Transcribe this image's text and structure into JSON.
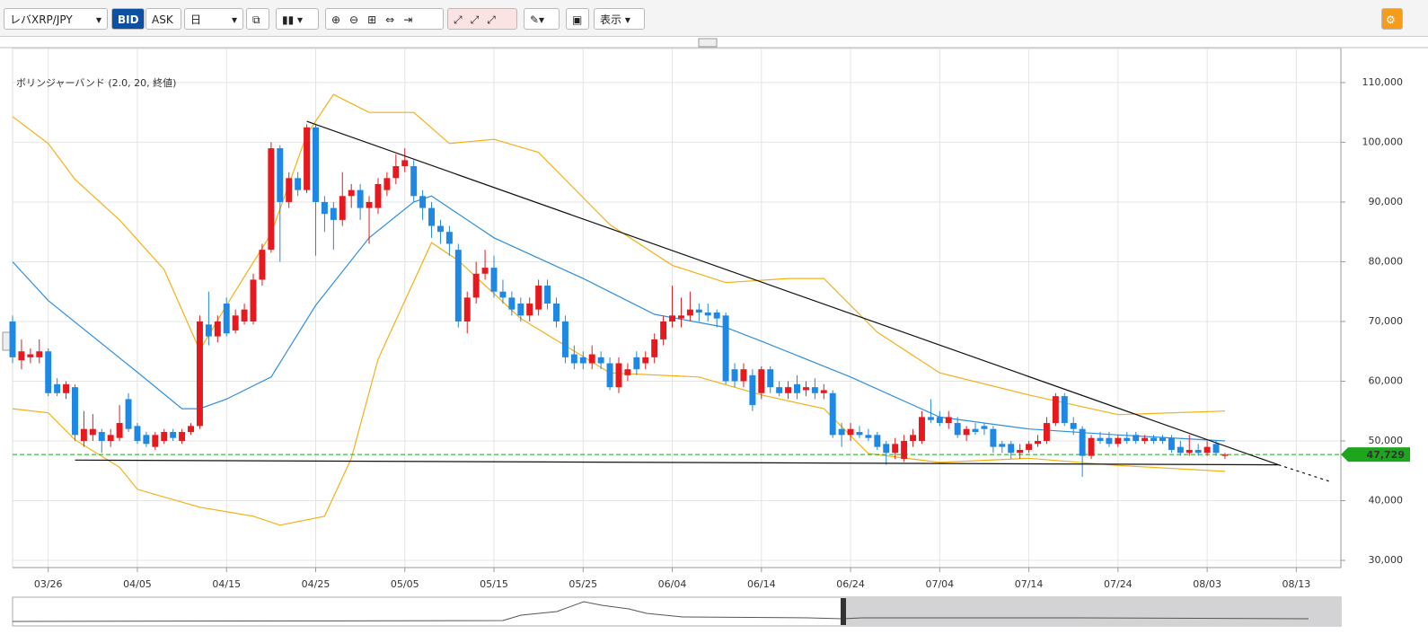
{
  "toolbar": {
    "symbol": "レバXRP/JPY",
    "bid": "BID",
    "ask": "ASK",
    "period": "日",
    "view": "表示"
  },
  "chart_data": {
    "type": "candlestick",
    "indicator_label": "ボリンジャーバンド (2.0, 20, 終値)",
    "indicator_color": "#f5b014",
    "middle_color": "#2e8fe0",
    "up_color": "#e8191e",
    "down_color": "#1e88e5",
    "xlim": [
      "03/22",
      "08/18"
    ],
    "xticks": [
      "03/26",
      "04/05",
      "04/15",
      "04/25",
      "05/05",
      "05/15",
      "05/25",
      "06/04",
      "06/14",
      "06/24",
      "07/04",
      "07/14",
      "07/24",
      "08/03",
      "08/13"
    ],
    "ylim": [
      28800,
      115700
    ],
    "yticks": [
      {
        "value": 30000,
        "label": "30,000"
      },
      {
        "value": 40000,
        "label": "40,000"
      },
      {
        "value": 50000,
        "label": "50,000"
      },
      {
        "value": 60000,
        "label": "60,000"
      },
      {
        "value": 70000,
        "label": "70,000"
      },
      {
        "value": 80000,
        "label": "80,000"
      },
      {
        "value": 90000,
        "label": "90,000"
      },
      {
        "value": 100000,
        "label": "100,000"
      },
      {
        "value": 110000,
        "label": "110,000"
      }
    ],
    "grid": true,
    "current_price": {
      "value": 47729,
      "label": "47,729",
      "color": "#1ea51e"
    },
    "categories": [
      "03/22",
      "03/23",
      "03/24",
      "03/25",
      "03/26",
      "03/27",
      "03/28",
      "03/29",
      "03/30",
      "03/31",
      "04/01",
      "04/02",
      "04/03",
      "04/04",
      "04/05",
      "04/06",
      "04/07",
      "04/08",
      "04/09",
      "04/10",
      "04/11",
      "04/12",
      "04/13",
      "04/14",
      "04/15",
      "04/16",
      "04/17",
      "04/18",
      "04/19",
      "04/20",
      "04/21",
      "04/22",
      "04/23",
      "04/24",
      "04/25",
      "04/26",
      "04/27",
      "04/28",
      "04/29",
      "04/30",
      "05/01",
      "05/02",
      "05/03",
      "05/04",
      "05/05",
      "05/06",
      "05/07",
      "05/08",
      "05/09",
      "05/10",
      "05/11",
      "05/12",
      "05/13",
      "05/14",
      "05/15",
      "05/16",
      "05/17",
      "05/18",
      "05/19",
      "05/20",
      "05/21",
      "05/22",
      "05/23",
      "05/24",
      "05/25",
      "05/26",
      "05/27",
      "05/28",
      "05/29",
      "05/30",
      "05/31",
      "06/01",
      "06/02",
      "06/03",
      "06/04",
      "06/05",
      "06/06",
      "06/07",
      "06/08",
      "06/09",
      "06/10",
      "06/11",
      "06/12",
      "06/13",
      "06/14",
      "06/15",
      "06/16",
      "06/17",
      "06/18",
      "06/19",
      "06/20",
      "06/21",
      "06/22",
      "06/23",
      "06/24",
      "06/25",
      "06/26",
      "06/27",
      "06/28",
      "06/29",
      "06/30",
      "07/01",
      "07/02",
      "07/03",
      "07/04",
      "07/05",
      "07/06",
      "07/07",
      "07/08",
      "07/09",
      "07/10",
      "07/11",
      "07/12",
      "07/13",
      "07/14",
      "07/15",
      "07/16",
      "07/17",
      "07/18",
      "07/19",
      "07/20",
      "07/21",
      "07/22",
      "07/23",
      "07/24",
      "07/25",
      "07/26",
      "07/27",
      "07/28",
      "07/29",
      "07/30",
      "07/31",
      "08/01",
      "08/02",
      "08/03",
      "08/04",
      "08/05"
    ],
    "candles": [
      [
        70000,
        71000,
        63000,
        64000
      ],
      [
        63500,
        67000,
        62000,
        65000
      ],
      [
        64000,
        65500,
        63000,
        64500
      ],
      [
        64000,
        67000,
        63000,
        65000
      ],
      [
        65000,
        65500,
        57500,
        58000
      ],
      [
        59500,
        60500,
        57500,
        58000
      ],
      [
        58000,
        60000,
        57000,
        59500
      ],
      [
        59000,
        59500,
        50000,
        51000
      ],
      [
        50000,
        55000,
        49000,
        52000
      ],
      [
        51000,
        54500,
        50000,
        52000
      ],
      [
        51500,
        52000,
        48000,
        50000
      ],
      [
        50000,
        52000,
        49000,
        51000
      ],
      [
        50500,
        56000,
        50000,
        53000
      ],
      [
        57000,
        58000,
        51500,
        52000
      ],
      [
        52500,
        53000,
        49500,
        50000
      ],
      [
        51000,
        51500,
        49000,
        49500
      ],
      [
        49000,
        51500,
        48500,
        51000
      ],
      [
        50000,
        52000,
        49500,
        51500
      ],
      [
        51500,
        52000,
        50000,
        50500
      ],
      [
        50000,
        52000,
        49500,
        51500
      ],
      [
        51500,
        53000,
        51000,
        52500
      ],
      [
        52500,
        71000,
        52000,
        70000
      ],
      [
        69500,
        75000,
        66000,
        67500
      ],
      [
        67500,
        71000,
        66500,
        70000
      ],
      [
        73000,
        74000,
        67500,
        68000
      ],
      [
        68500,
        72000,
        68000,
        71000
      ],
      [
        70000,
        73000,
        69500,
        72000
      ],
      [
        70000,
        78000,
        69500,
        77000
      ],
      [
        77000,
        83000,
        76000,
        82000
      ],
      [
        82000,
        100000,
        81500,
        99000
      ],
      [
        99000,
        99500,
        80000,
        90000
      ],
      [
        90000,
        95000,
        89000,
        94000
      ],
      [
        94000,
        95000,
        91000,
        92000
      ],
      [
        92000,
        103000,
        91500,
        102500
      ],
      [
        102500,
        103000,
        81000,
        90000
      ],
      [
        90000,
        91000,
        85000,
        88000
      ],
      [
        89000,
        90000,
        82000,
        87000
      ],
      [
        87000,
        95000,
        86000,
        91000
      ],
      [
        91000,
        93000,
        89000,
        92000
      ],
      [
        92000,
        93000,
        87000,
        89000
      ],
      [
        89000,
        91000,
        83000,
        90000
      ],
      [
        89000,
        94000,
        88000,
        93000
      ],
      [
        92000,
        95000,
        91000,
        94000
      ],
      [
        94000,
        98000,
        93000,
        96000
      ],
      [
        96000,
        99000,
        95000,
        97000
      ],
      [
        96000,
        97000,
        90000,
        91000
      ],
      [
        91000,
        92000,
        87000,
        89000
      ],
      [
        89000,
        90000,
        84000,
        86000
      ],
      [
        86000,
        87000,
        83000,
        85000
      ],
      [
        85000,
        86000,
        81000,
        83000
      ],
      [
        82000,
        83000,
        69000,
        70000
      ],
      [
        70000,
        75000,
        68000,
        74000
      ],
      [
        74000,
        80000,
        73000,
        78000
      ],
      [
        78000,
        82000,
        77000,
        79000
      ],
      [
        79000,
        81000,
        74000,
        75000
      ],
      [
        75000,
        77000,
        73000,
        74000
      ],
      [
        74000,
        75000,
        71000,
        72000
      ],
      [
        73000,
        74000,
        70000,
        71000
      ],
      [
        71000,
        74000,
        70000,
        73000
      ],
      [
        72000,
        77000,
        71000,
        76000
      ],
      [
        76000,
        77000,
        72000,
        73000
      ],
      [
        73000,
        74000,
        69000,
        70000
      ],
      [
        70000,
        71000,
        63000,
        64000
      ],
      [
        64500,
        66000,
        62000,
        63000
      ],
      [
        64000,
        65000,
        62000,
        63000
      ],
      [
        63000,
        66000,
        62000,
        64500
      ],
      [
        64000,
        65000,
        62000,
        63000
      ],
      [
        63000,
        64000,
        58500,
        59000
      ],
      [
        59000,
        64000,
        58000,
        63000
      ],
      [
        61000,
        63000,
        60000,
        62000
      ],
      [
        64000,
        65000,
        61000,
        62000
      ],
      [
        63000,
        65000,
        62000,
        64000
      ],
      [
        64000,
        68000,
        63000,
        67000
      ],
      [
        67000,
        71000,
        66000,
        70000
      ],
      [
        70000,
        76000,
        69000,
        71000
      ],
      [
        70500,
        74000,
        69000,
        71000
      ],
      [
        71000,
        75000,
        70000,
        72000
      ],
      [
        72000,
        73000,
        70000,
        71500
      ],
      [
        71500,
        73000,
        70000,
        71000
      ],
      [
        71500,
        72000,
        69000,
        70500
      ],
      [
        71000,
        71500,
        59500,
        60000
      ],
      [
        62000,
        63000,
        59000,
        60000
      ],
      [
        60000,
        63000,
        59000,
        62000
      ],
      [
        61000,
        62000,
        55000,
        56000
      ],
      [
        58000,
        62500,
        57000,
        62000
      ],
      [
        62000,
        62500,
        58000,
        59000
      ],
      [
        59000,
        60000,
        57500,
        58000
      ],
      [
        58000,
        60000,
        57000,
        59000
      ],
      [
        59500,
        61000,
        57000,
        58000
      ],
      [
        58500,
        60000,
        57500,
        59000
      ],
      [
        59000,
        60500,
        57000,
        58000
      ],
      [
        58000,
        59500,
        57000,
        58500
      ],
      [
        58000,
        58500,
        50500,
        51000
      ],
      [
        52000,
        53000,
        49000,
        51000
      ],
      [
        51000,
        53000,
        50000,
        52000
      ],
      [
        51500,
        52500,
        50500,
        51000
      ],
      [
        51000,
        52000,
        50000,
        50500
      ],
      [
        51000,
        51500,
        48500,
        49000
      ],
      [
        49500,
        50000,
        46000,
        48000
      ],
      [
        48000,
        50500,
        47000,
        49500
      ],
      [
        47000,
        51000,
        46500,
        50000
      ],
      [
        50000,
        52000,
        49000,
        51000
      ],
      [
        50000,
        55000,
        49500,
        54000
      ],
      [
        54000,
        57000,
        53000,
        53500
      ],
      [
        54000,
        55000,
        52500,
        53000
      ],
      [
        53000,
        55000,
        52000,
        54000
      ],
      [
        53000,
        54000,
        50500,
        51000
      ],
      [
        51000,
        52500,
        50000,
        52000
      ],
      [
        52000,
        53000,
        51000,
        51500
      ],
      [
        52500,
        53000,
        51000,
        52000
      ],
      [
        52000,
        52500,
        48000,
        49000
      ],
      [
        49500,
        50000,
        48000,
        49000
      ],
      [
        49500,
        50000,
        47000,
        48000
      ],
      [
        48000,
        49500,
        47000,
        48500
      ],
      [
        48500,
        50000,
        48000,
        49500
      ],
      [
        49500,
        51000,
        49000,
        50000
      ],
      [
        50000,
        54000,
        49500,
        53000
      ],
      [
        53000,
        58000,
        52500,
        57500
      ],
      [
        57500,
        58000,
        52500,
        53000
      ],
      [
        53000,
        54000,
        51000,
        52000
      ],
      [
        52000,
        52500,
        44000,
        47500
      ],
      [
        47500,
        51000,
        47000,
        50500
      ],
      [
        50500,
        51500,
        49500,
        50000
      ],
      [
        50500,
        51500,
        49000,
        49500
      ],
      [
        49500,
        51000,
        49000,
        50500
      ],
      [
        50500,
        51500,
        49500,
        50000
      ],
      [
        51000,
        51500,
        49500,
        50000
      ],
      [
        50000,
        51000,
        49500,
        50500
      ],
      [
        50500,
        51000,
        49500,
        50000
      ],
      [
        50500,
        51000,
        49500,
        50000
      ],
      [
        50500,
        51000,
        48000,
        48500
      ],
      [
        49000,
        50000,
        47500,
        48000
      ],
      [
        48000,
        51000,
        47500,
        48500
      ],
      [
        48500,
        49500,
        47500,
        48000
      ],
      [
        48000,
        50000,
        47500,
        49000
      ],
      [
        49500,
        50000,
        47500,
        48000
      ],
      [
        47500,
        48000,
        47000,
        47700
      ]
    ],
    "bands": [
      {
        "x": [
          "03/22",
          "03/26",
          "03/29",
          "04/03",
          "04/08",
          "04/12",
          "04/15",
          "04/20",
          "04/24",
          "04/27",
          "05/01",
          "05/06",
          "05/10",
          "05/15",
          "05/20",
          "05/28",
          "06/04",
          "06/10",
          "06/17",
          "06/21",
          "06/27",
          "07/04",
          "07/14",
          "07/24",
          "08/05"
        ],
        "values": [
          104300,
          99800,
          93800,
          87000,
          78700,
          65200,
          72700,
          84700,
          101300,
          108000,
          105000,
          105000,
          99800,
          100500,
          98300,
          86200,
          79400,
          76500,
          77200,
          77200,
          68200,
          61400,
          57700,
          54400,
          55000
        ],
        "style": "band"
      },
      {
        "x": [
          "03/22",
          "03/26",
          "04/05",
          "04/10",
          "04/12",
          "04/15",
          "04/20",
          "04/25",
          "05/01",
          "05/06",
          "05/08",
          "05/15",
          "05/25",
          "06/02",
          "06/10",
          "06/14",
          "06/24",
          "07/04",
          "07/14",
          "07/24",
          "08/05"
        ],
        "values": [
          80000,
          73500,
          61500,
          55400,
          55400,
          57000,
          60700,
          72700,
          84000,
          90000,
          91000,
          84000,
          77200,
          71200,
          69000,
          66700,
          60700,
          54000,
          52000,
          51000,
          50000
        ],
        "style": "middle"
      },
      {
        "x": [
          "03/22",
          "03/26",
          "03/29",
          "04/03",
          "04/05",
          "04/12",
          "04/18",
          "04/21",
          "04/26",
          "04/29",
          "05/02",
          "05/08",
          "05/11",
          "05/18",
          "05/28",
          "06/07",
          "06/14",
          "06/21",
          "06/26",
          "07/04",
          "07/14",
          "07/24",
          "08/05"
        ],
        "values": [
          55400,
          54700,
          50200,
          45600,
          41900,
          38900,
          37400,
          35900,
          37400,
          47100,
          63700,
          83200,
          80200,
          70500,
          61400,
          60700,
          57700,
          55400,
          47900,
          46400,
          47100,
          45900,
          44900
        ],
        "style": "band"
      }
    ],
    "trendlines": [
      {
        "x": [
          "04/24",
          "08/11"
        ],
        "values": [
          103500,
          46000
        ],
        "dash": false
      },
      {
        "x": [
          "03/29",
          "08/11"
        ],
        "values": [
          46800,
          46000
        ],
        "dash": false
      },
      {
        "x": [
          "08/11",
          "08/17"
        ],
        "values": [
          46000,
          43100
        ],
        "dash": true
      }
    ]
  }
}
